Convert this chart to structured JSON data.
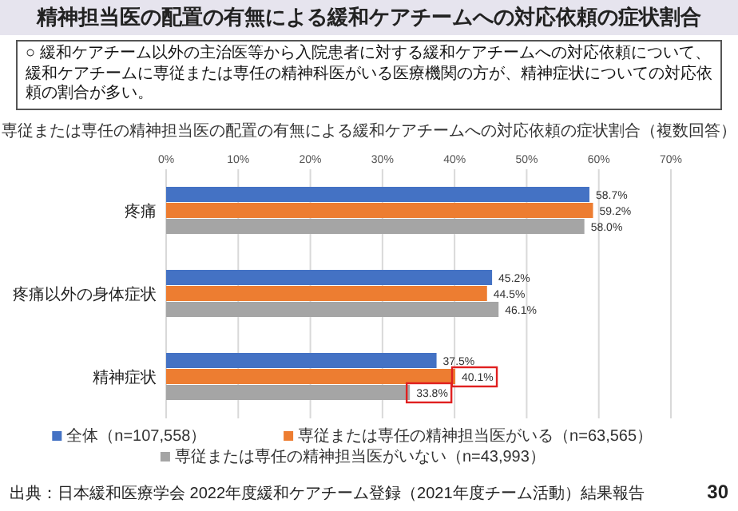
{
  "chart_data": {
    "type": "bar",
    "orientation": "horizontal",
    "title": "精神担当医の配置の有無による緩和ケアチームへの対応依頼の症状割合",
    "subtitle": "専従または専任の精神担当医の配置の有無による緩和ケアチームへの対応依頼の症状割合（複数回答）",
    "categories": [
      "疼痛",
      "疼痛以外の身体症状",
      "精神症状"
    ],
    "series": [
      {
        "name": "全体（n=107,558）",
        "color": "#4472c4",
        "values": [
          58.7,
          45.2,
          37.5
        ],
        "value_labels": [
          "58.7%",
          "45.2%",
          "37.5%"
        ]
      },
      {
        "name": "専従または専任の精神担当医がいる（n=63,565）",
        "color": "#ed7d31",
        "values": [
          59.2,
          44.5,
          40.1
        ],
        "value_labels": [
          "59.2%",
          "44.5%",
          "40.1%"
        ]
      },
      {
        "name": "専従または専任の精神担当医がいない（n=43,993）",
        "color": "#a5a5a5",
        "values": [
          58.0,
          46.1,
          33.8
        ],
        "value_labels": [
          "58.0%",
          "46.1%",
          "33.8%"
        ]
      }
    ],
    "xlim": [
      0,
      70
    ],
    "xticks": [
      {
        "value": 0,
        "label": "0%"
      },
      {
        "value": 10,
        "label": "10%"
      },
      {
        "value": 20,
        "label": "20%"
      },
      {
        "value": 30,
        "label": "30%"
      },
      {
        "value": 40,
        "label": "40%"
      },
      {
        "value": 50,
        "label": "50%"
      },
      {
        "value": 60,
        "label": "60%"
      },
      {
        "value": 70,
        "label": "70%"
      }
    ],
    "grid": "x",
    "legend": "bottom",
    "annotations": [
      "○ 緩和ケアチーム以外の主治医等から入院患者に対する緩和ケアチームへの対応依頼について、緩和ケアチームに専従または専任の精神科医がいる医療機関の方が、精神症状についての対応依頼の割合が多い。",
      "出典：日本緩和医療学会 2022年度緩和ケアチーム登録（2021年度チーム活動）結果報告",
      "30"
    ]
  }
}
